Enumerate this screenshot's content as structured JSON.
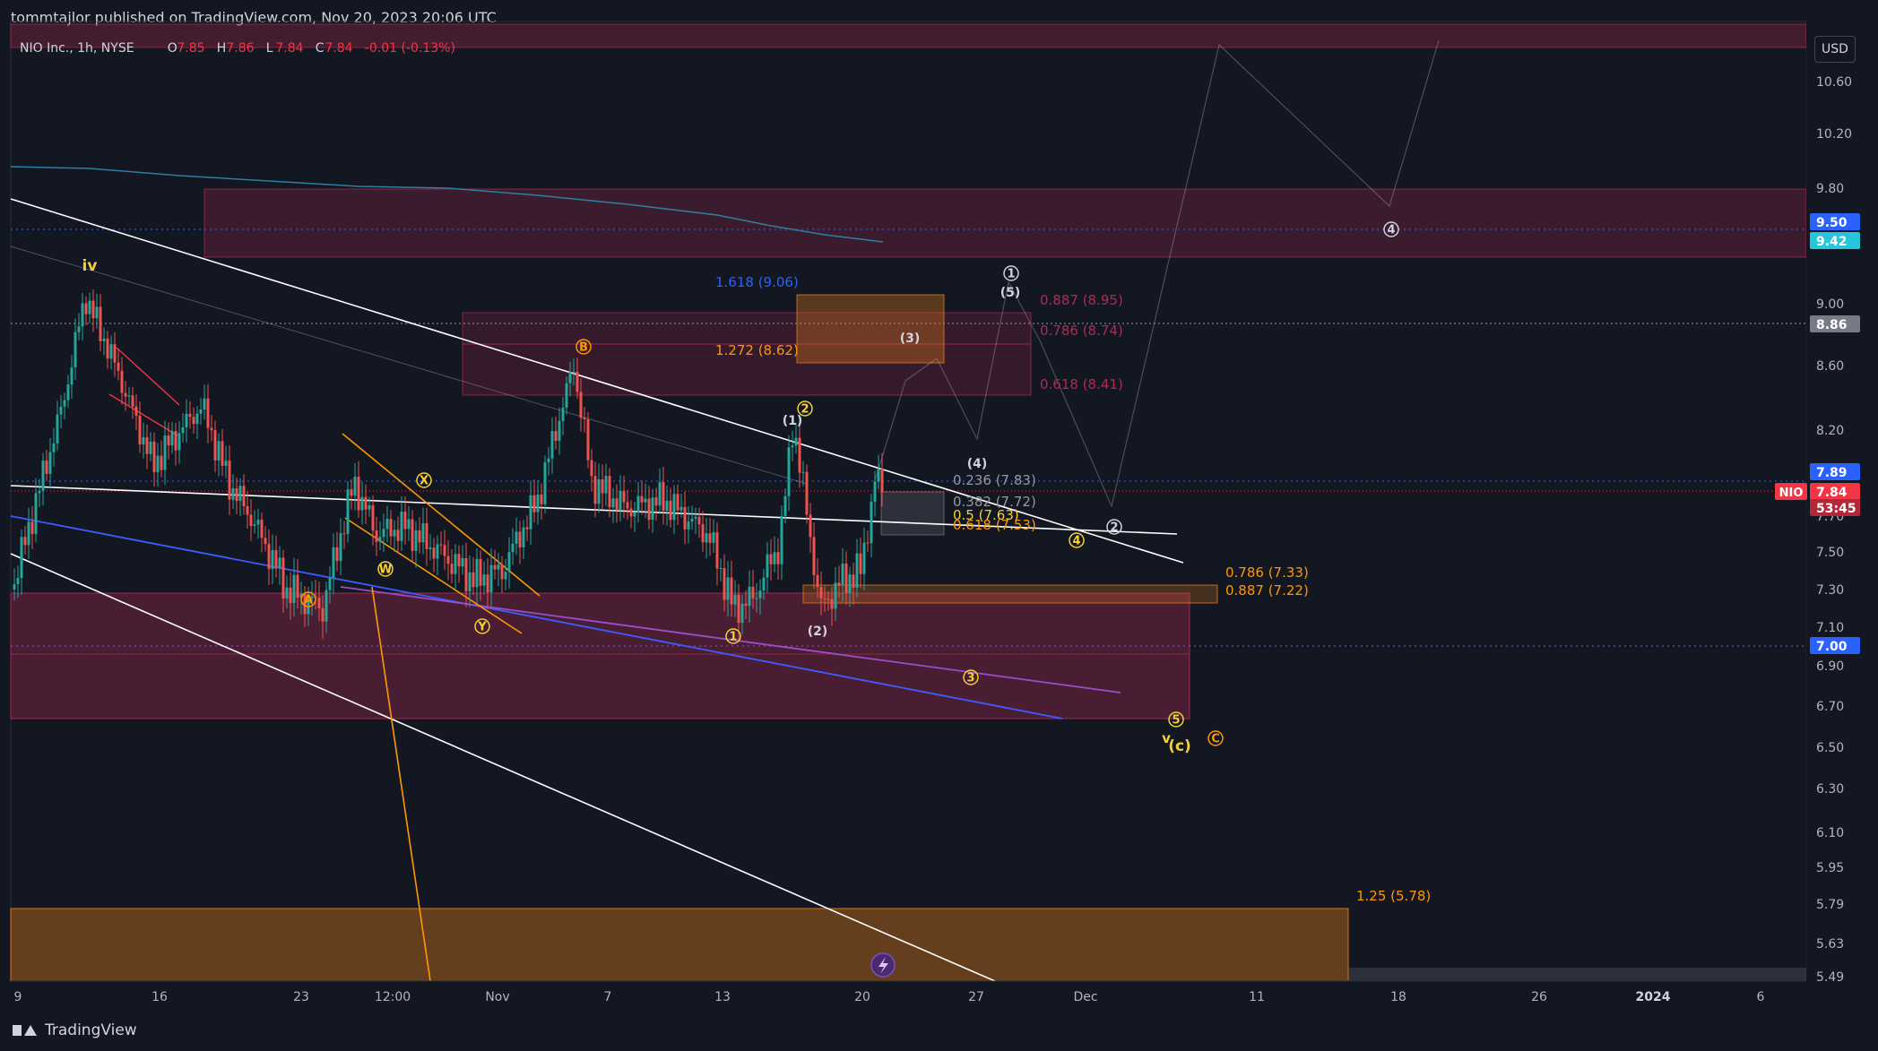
{
  "publisher": "tommtajlor published on TradingView.com, Nov 20, 2023 20:06 UTC",
  "brand": "TradingView",
  "legend": {
    "symbol": "NIO Inc., 1h, NYSE",
    "o_label": "O",
    "o_value": "7.85",
    "h_label": "H",
    "h_value": "7.86",
    "l_label": "L",
    "l_value": "7.84",
    "c_label": "C",
    "c_value": "7.84",
    "change": "-0.01 (-0.13%)"
  },
  "currency_button": "USD",
  "colors": {
    "background": "#131722",
    "text": "#d1d4dc",
    "zone_red": "#b02a52",
    "zone_orange": "#e07b1a",
    "white_line": "#ffffff",
    "blue_line": "#3d5cff",
    "purple_line": "#9c4dcc",
    "orange_line": "#ff9800",
    "wave_yellow": "#f5d033",
    "wave_orange": "#ff9800",
    "price_red": "#f23645",
    "price_blue": "#2962ff"
  },
  "chart_data": {
    "type": "candlestick",
    "symbol": "NIO",
    "timeframe": "1h",
    "x_ticks": [
      "9",
      "16",
      "23",
      "12:00",
      "Nov",
      "7",
      "13",
      "20",
      "27",
      "Dec",
      "11",
      "18",
      "26",
      "2024",
      "6"
    ],
    "y_ticks": [
      "10.60",
      "10.20",
      "9.80",
      "9.00",
      "8.60",
      "8.20",
      "7.50",
      "7.30",
      "7.10",
      "6.90",
      "6.70",
      "6.50",
      "6.30",
      "6.10",
      "5.95",
      "5.79",
      "5.63",
      "5.49"
    ],
    "y_range": [
      5.49,
      10.95
    ],
    "price_tags": [
      {
        "label": "9.50",
        "price": 9.5,
        "color": "#2962ff"
      },
      {
        "label": "9.42",
        "price": 9.42,
        "color": "#26c6da"
      },
      {
        "label": "8.86",
        "price": 8.86,
        "color": "#787b86"
      },
      {
        "label": "7.89",
        "price": 7.89,
        "color": "#2962ff"
      },
      {
        "label": "7.84",
        "price": 7.84,
        "color": "#f23645"
      },
      {
        "label": "53:45",
        "price": 7.72,
        "color": "#f23645"
      },
      {
        "label": "7.00",
        "price": 7.0,
        "color": "#2962ff"
      }
    ],
    "last_price_label": "NIO",
    "fib_labels": [
      {
        "text": "1.618 (9.06)",
        "color": "#2962ff"
      },
      {
        "text": "1.272 (8.62)",
        "color": "#ff9800"
      },
      {
        "text": "0.887 (8.95)",
        "color": "#b02a52"
      },
      {
        "text": "0.786 (8.74)",
        "color": "#b02a52"
      },
      {
        "text": "0.618 (8.41)",
        "color": "#b02a52"
      },
      {
        "text": "0.236 (7.83)",
        "color": "#9598a1"
      },
      {
        "text": "0.382 (7.72)",
        "color": "#9598a1"
      },
      {
        "text": "0.5 (7.63)",
        "color": "#f5d033"
      },
      {
        "text": "0.618 (7.53)",
        "color": "#ff9800"
      },
      {
        "text": "0.786 (7.33)",
        "color": "#ff9800"
      },
      {
        "text": "0.887 (7.22)",
        "color": "#ff9800"
      },
      {
        "text": "1.25 (5.78)",
        "color": "#ff9800"
      }
    ],
    "wave_labels": [
      "iv",
      "A",
      "W",
      "X",
      "Y",
      "B",
      "1",
      "(1)",
      "2",
      "(2)",
      "(3)",
      "(4)",
      "3",
      "4",
      "1",
      "(5)",
      "2",
      "4",
      "5",
      "v",
      "(c)",
      "C"
    ]
  }
}
